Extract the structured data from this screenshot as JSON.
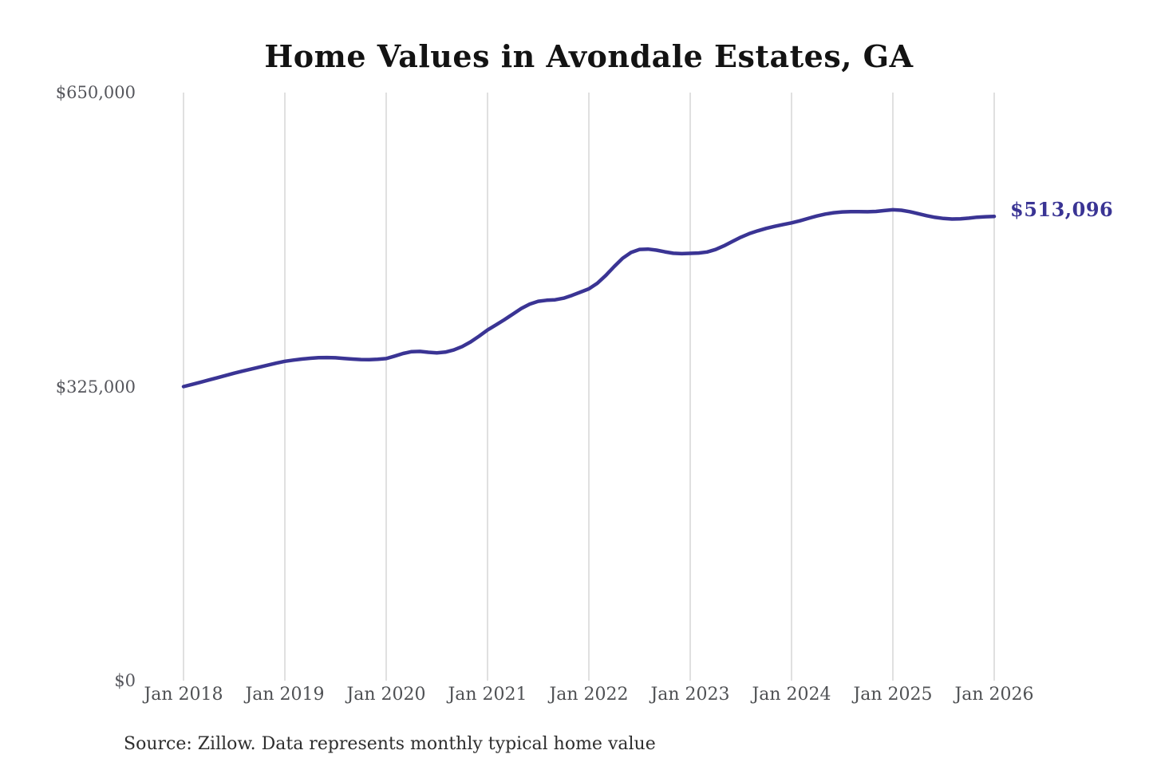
{
  "page": {
    "background": "#ffffff"
  },
  "chart": {
    "title": "Home Values in Avondale Estates, GA",
    "annotation": {
      "text": "$513,096"
    },
    "source_note": "Source: Zillow. Data represents monthly typical home value",
    "colors": {
      "line": "#3a3494",
      "annotation": "#3a3494",
      "grid": "#cbcbcb",
      "y_axis_label": "#55565c",
      "x_axis_label": "#4f5154",
      "title": "#131313",
      "source": "#2e2e2e",
      "background": "#ffffff"
    }
  },
  "chart_data": {
    "type": "line",
    "title": "Home Values in Avondale Estates, GA",
    "unit": "USD",
    "frequency": "monthly",
    "grid": "vertical-only",
    "legend": "none",
    "ylim": [
      0,
      650000
    ],
    "y_ticks": [
      {
        "value": 0,
        "label": "$0"
      },
      {
        "value": 325000,
        "label": "$325,000"
      },
      {
        "value": 650000,
        "label": "$650,000"
      }
    ],
    "x_tick_labels": [
      "Jan 2018",
      "Jan 2019",
      "Jan 2020",
      "Jan 2021",
      "Jan 2022",
      "Jan 2023",
      "Jan 2024",
      "Jan 2025",
      "Jan 2026"
    ],
    "series": [
      {
        "name": "Monthly typical home value",
        "start_month": "Jan 2018",
        "end_month": "Jan 2026",
        "final_value": 513096,
        "final_value_label": "$513,096",
        "values": [
          325000,
          327400,
          329800,
          332300,
          334800,
          337300,
          339800,
          342100,
          344300,
          346500,
          348700,
          350900,
          353000,
          354300,
          355400,
          356300,
          356900,
          357100,
          356800,
          356100,
          355400,
          354900,
          354800,
          355200,
          356000,
          358700,
          361600,
          363600,
          363900,
          362900,
          362300,
          363100,
          365500,
          369300,
          374400,
          380700,
          387500,
          393200,
          399000,
          405200,
          411300,
          416200,
          419300,
          420400,
          421000,
          422700,
          425800,
          429400,
          433000,
          439200,
          447900,
          457700,
          466800,
          473300,
          476600,
          477000,
          475800,
          474000,
          472400,
          471900,
          472300,
          472600,
          473800,
          476500,
          480600,
          485400,
          490100,
          494100,
          497200,
          499900,
          502100,
          504100,
          506000,
          508300,
          511000,
          513600,
          515700,
          517200,
          518100,
          518400,
          518300,
          518200,
          518600,
          519600,
          520400,
          519900,
          518300,
          516100,
          513900,
          512100,
          510800,
          510200,
          510400,
          511200,
          512200,
          512800,
          513096
        ]
      }
    ]
  }
}
